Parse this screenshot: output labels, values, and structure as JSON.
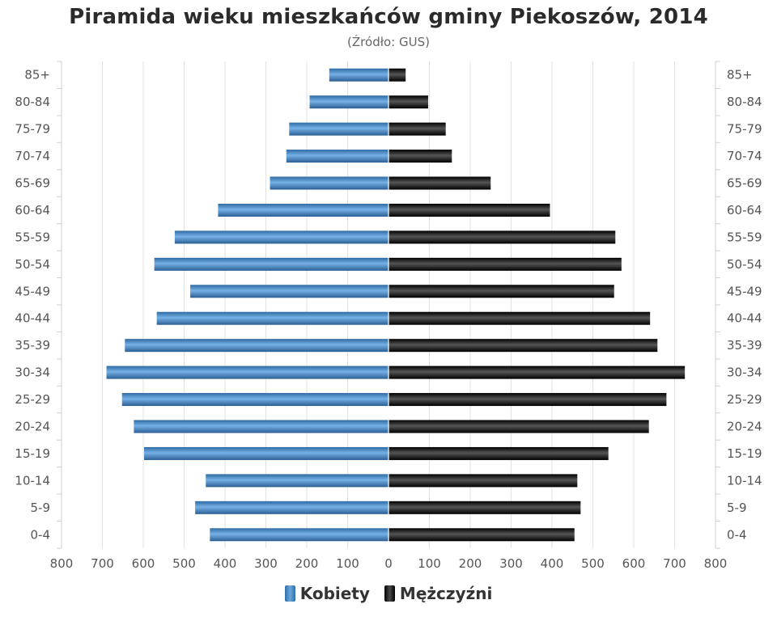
{
  "chart_data": {
    "type": "bar",
    "orientation": "horizontal-population-pyramid",
    "title": "Piramida wieku mieszkańców gminy Piekoszów, 2014",
    "subtitle": "(Źródło: GUS)",
    "categories": [
      "85+",
      "80-84",
      "75-79",
      "70-74",
      "65-69",
      "60-64",
      "55-59",
      "50-54",
      "45-49",
      "40-44",
      "35-39",
      "30-34",
      "25-29",
      "20-24",
      "15-19",
      "10-14",
      "5-9",
      "0-4"
    ],
    "series": [
      {
        "name": "Kobiety",
        "color": "#4a8bcb",
        "values": [
          145,
          193,
          243,
          250,
          290,
          417,
          523,
          573,
          485,
          567,
          645,
          690,
          652,
          623,
          598,
          447,
          473,
          437
        ]
      },
      {
        "name": "Mężczyźni",
        "color": "#1a1a1a",
        "values": [
          42,
          97,
          140,
          155,
          250,
          395,
          555,
          570,
          552,
          640,
          658,
          725,
          680,
          637,
          538,
          462,
          470,
          455
        ]
      }
    ],
    "x_ticks": [
      "800",
      "700",
      "600",
      "500",
      "400",
      "300",
      "200",
      "100",
      "0",
      "100",
      "200",
      "300",
      "400",
      "500",
      "600",
      "700",
      "800"
    ],
    "xlim": [
      -800,
      800
    ],
    "grid": true,
    "legend_position": "bottom-center"
  }
}
